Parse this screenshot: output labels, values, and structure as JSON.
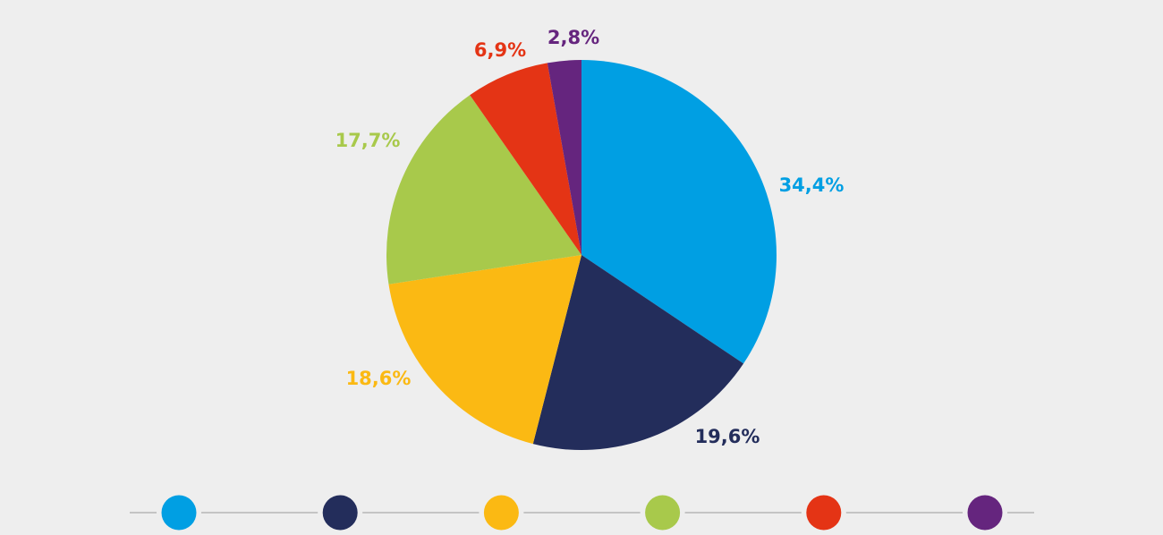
{
  "chart_data": {
    "type": "pie",
    "slices": [
      {
        "label": "34,4%",
        "value": 34.4,
        "color": "#009fe3"
      },
      {
        "label": "19,6%",
        "value": 19.6,
        "color": "#232d5b"
      },
      {
        "label": "18,6%",
        "value": 18.6,
        "color": "#fbb913"
      },
      {
        "label": "17,7%",
        "value": 17.7,
        "color": "#a8c94b"
      },
      {
        "label": "6,9%",
        "value": 6.9,
        "color": "#e43415"
      },
      {
        "label": "2,8%",
        "value": 2.8,
        "color": "#65257e"
      }
    ],
    "start": "12 o'clock",
    "direction": "clockwise",
    "legend": {
      "placement": "bottom",
      "markers": [
        "#009fe3",
        "#232d5b",
        "#fbb913",
        "#a8c94b",
        "#e43415",
        "#65257e"
      ]
    }
  }
}
